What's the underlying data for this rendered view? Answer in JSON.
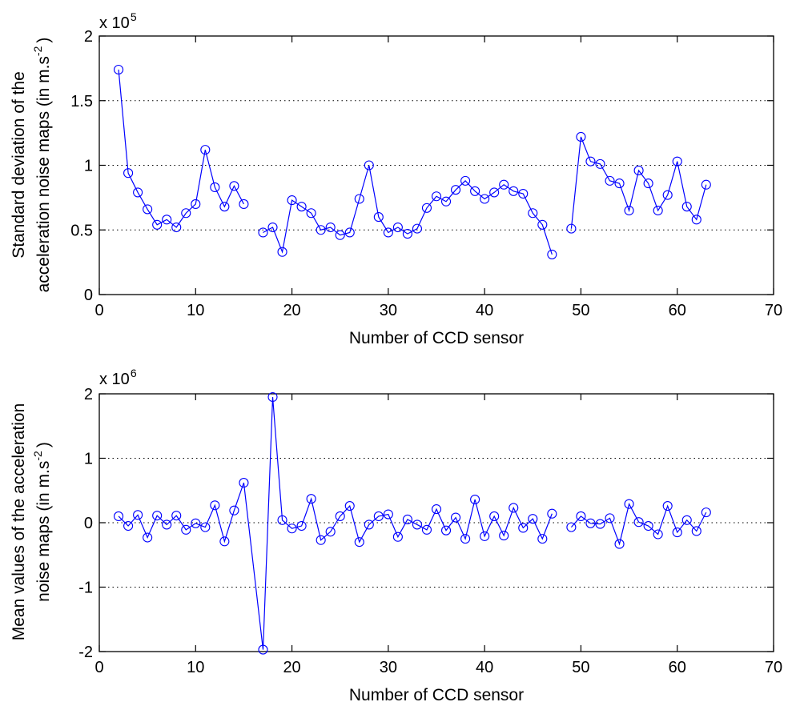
{
  "colors": {
    "series": "#0000ff",
    "axes": "#000000",
    "grid": "#000000",
    "background": "#ffffff"
  },
  "chart_data": [
    {
      "type": "line",
      "marker": "circle",
      "grid": "horizontal dotted",
      "xlabel": "Number of CCD sensor",
      "ylabel_line1": "Standard deviation of the",
      "ylabel_line2_text": "acceleration noise maps (in m.s",
      "ylabel_line2_sup": "-2",
      "ylabel_line2_end": ")",
      "exponent_base": "x 10",
      "exponent_power": "5",
      "xlim": [
        0,
        70
      ],
      "ylim": [
        0,
        2
      ],
      "xticks": [
        0,
        10,
        20,
        30,
        40,
        50,
        60,
        70
      ],
      "yticks": [
        0,
        0.5,
        1,
        1.5,
        2
      ],
      "ytick_labels": [
        "0",
        "0.5",
        "1",
        "1.5",
        "2"
      ],
      "series": [
        {
          "x": [
            2,
            3,
            4,
            5,
            6,
            7,
            8,
            9,
            10,
            11,
            12,
            13,
            14,
            15
          ],
          "y": [
            1.74,
            0.94,
            0.79,
            0.66,
            0.54,
            0.58,
            0.52,
            0.63,
            0.7,
            1.12,
            0.83,
            0.68,
            0.84,
            0.7
          ]
        },
        {
          "x": [
            17,
            18,
            19,
            20,
            21,
            22,
            23,
            24,
            25,
            26,
            27,
            28,
            29,
            30,
            31,
            32,
            33,
            34,
            35,
            36,
            37,
            38,
            39,
            40,
            41,
            42,
            43,
            44,
            45,
            46,
            47
          ],
          "y": [
            0.48,
            0.52,
            0.33,
            0.73,
            0.68,
            0.63,
            0.5,
            0.52,
            0.46,
            0.48,
            0.74,
            1.0,
            0.6,
            0.48,
            0.52,
            0.47,
            0.51,
            0.67,
            0.76,
            0.72,
            0.81,
            0.88,
            0.8,
            0.74,
            0.79,
            0.85,
            0.8,
            0.78,
            0.63,
            0.54,
            0.31
          ]
        },
        {
          "x": [
            49,
            50,
            51,
            52,
            53,
            54,
            55,
            56,
            57,
            58,
            59,
            60,
            61,
            62,
            63
          ],
          "y": [
            0.51,
            1.22,
            1.03,
            1.01,
            0.88,
            0.86,
            0.65,
            0.96,
            0.86,
            0.65,
            0.77,
            1.03,
            0.68,
            0.58,
            0.85
          ]
        }
      ]
    },
    {
      "type": "line",
      "marker": "circle",
      "grid": "horizontal dotted",
      "xlabel": "Number of CCD sensor",
      "ylabel_line1": "Mean values of the acceleration",
      "ylabel_line2_text": "noise maps (in m.s",
      "ylabel_line2_sup": "-2",
      "ylabel_line2_end": ")",
      "exponent_base": "x 10",
      "exponent_power": "6",
      "xlim": [
        0,
        70
      ],
      "ylim": [
        -2,
        2
      ],
      "xticks": [
        0,
        10,
        20,
        30,
        40,
        50,
        60,
        70
      ],
      "yticks": [
        -2,
        -1,
        0,
        1,
        2
      ],
      "ytick_labels": [
        "-2",
        "-1",
        "0",
        "1",
        "2"
      ],
      "series": [
        {
          "x": [
            2,
            3,
            4,
            5,
            6,
            7,
            8,
            9,
            10,
            11,
            12,
            13,
            14,
            15,
            17,
            18,
            19,
            20,
            21,
            22,
            23,
            24,
            25,
            26,
            27,
            28,
            29,
            30,
            31,
            32,
            33,
            34,
            35,
            36,
            37,
            38,
            39,
            40,
            41,
            42,
            43,
            44,
            45,
            46,
            47
          ],
          "y": [
            0.1,
            -0.05,
            0.12,
            -0.23,
            0.11,
            -0.03,
            0.11,
            -0.11,
            -0.01,
            -0.07,
            0.27,
            -0.29,
            0.19,
            0.62,
            -1.97,
            1.95,
            0.04,
            -0.09,
            -0.05,
            0.37,
            -0.27,
            -0.14,
            0.1,
            0.26,
            -0.3,
            -0.03,
            0.1,
            0.13,
            -0.22,
            0.05,
            -0.03,
            -0.11,
            0.21,
            -0.12,
            0.08,
            -0.25,
            0.36,
            -0.21,
            0.1,
            -0.2,
            0.23,
            -0.08,
            0.06,
            -0.25,
            0.14
          ]
        },
        {
          "x": [
            49,
            50,
            51,
            52,
            53,
            54,
            55,
            56,
            57,
            58,
            59,
            60,
            61,
            62,
            63
          ],
          "y": [
            -0.07,
            0.1,
            -0.01,
            -0.02,
            0.07,
            -0.33,
            0.29,
            0.01,
            -0.05,
            -0.18,
            0.26,
            -0.15,
            0.04,
            -0.13,
            0.16
          ]
        }
      ]
    }
  ]
}
